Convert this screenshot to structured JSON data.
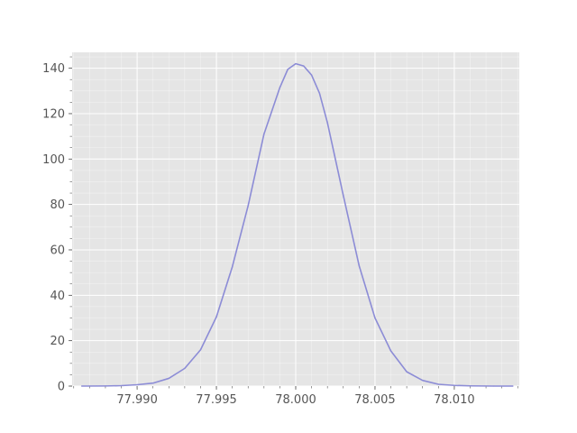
{
  "chart_data": {
    "type": "line",
    "title": "",
    "xlabel": "",
    "ylabel": "",
    "xlim": [
      77.9859,
      78.0141
    ],
    "ylim": [
      0,
      147
    ],
    "x_ticks": [
      77.99,
      77.995,
      78.0,
      78.005,
      78.01
    ],
    "x_tick_labels": [
      "77.990",
      "77.995",
      "78.000",
      "78.005",
      "78.010"
    ],
    "y_ticks": [
      0,
      20,
      40,
      60,
      80,
      100,
      120,
      140
    ],
    "y_tick_labels": [
      "0",
      "20",
      "40",
      "60",
      "80",
      "100",
      "120",
      "140"
    ],
    "grid": true,
    "legend": "none",
    "colors": {
      "background": "#e5e5e5",
      "grid": "#ffffff",
      "line": "#8c8cd6",
      "tick_text": "#555555"
    },
    "series": [
      {
        "values": [
          {
            "x": 77.9865,
            "y": 0.0
          },
          {
            "x": 77.988,
            "y": 0.05
          },
          {
            "x": 77.989,
            "y": 0.2
          },
          {
            "x": 77.99,
            "y": 0.6
          },
          {
            "x": 77.991,
            "y": 1.3
          },
          {
            "x": 77.992,
            "y": 3.4
          },
          {
            "x": 77.993,
            "y": 7.8
          },
          {
            "x": 77.994,
            "y": 16.0
          },
          {
            "x": 77.995,
            "y": 30.5
          },
          {
            "x": 77.996,
            "y": 52.5
          },
          {
            "x": 77.997,
            "y": 79.5
          },
          {
            "x": 77.998,
            "y": 111.0
          },
          {
            "x": 77.999,
            "y": 131.5
          },
          {
            "x": 77.9995,
            "y": 139.5
          },
          {
            "x": 78.0,
            "y": 142.0
          },
          {
            "x": 78.0005,
            "y": 141.0
          },
          {
            "x": 78.001,
            "y": 137.0
          },
          {
            "x": 78.0015,
            "y": 129.0
          },
          {
            "x": 78.002,
            "y": 116.0
          },
          {
            "x": 78.003,
            "y": 84.0
          },
          {
            "x": 78.004,
            "y": 53.0
          },
          {
            "x": 78.005,
            "y": 30.0
          },
          {
            "x": 78.006,
            "y": 15.5
          },
          {
            "x": 78.007,
            "y": 6.3
          },
          {
            "x": 78.008,
            "y": 2.5
          },
          {
            "x": 78.009,
            "y": 0.8
          },
          {
            "x": 78.01,
            "y": 0.3
          },
          {
            "x": 78.011,
            "y": 0.1
          },
          {
            "x": 78.0125,
            "y": 0.0
          },
          {
            "x": 78.0137,
            "y": 0.0
          }
        ]
      }
    ]
  }
}
